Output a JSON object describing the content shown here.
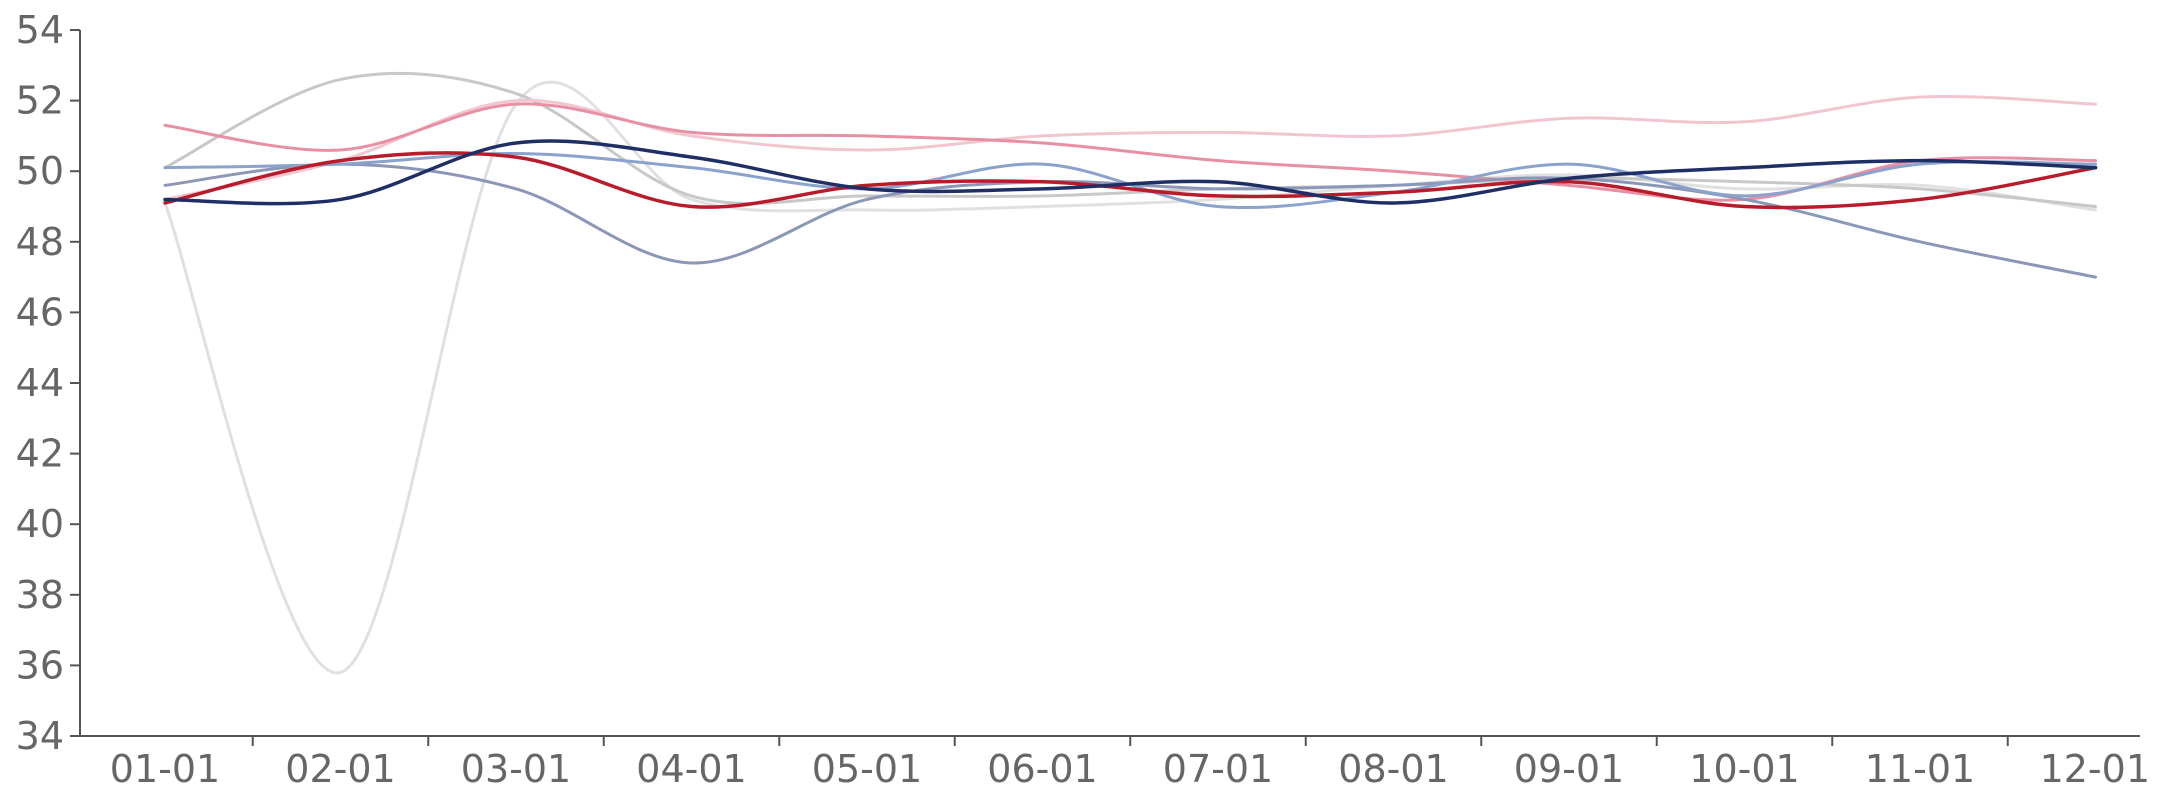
{
  "chart_data": {
    "type": "line",
    "title": "",
    "xlabel": "",
    "ylabel": "",
    "unit_label": "",
    "categories": [
      "01-01",
      "02-01",
      "03-01",
      "04-01",
      "05-01",
      "06-01",
      "07-01",
      "08-01",
      "09-01",
      "10-01",
      "11-01",
      "12-01"
    ],
    "y_ticks": [
      34,
      36,
      38,
      40,
      42,
      44,
      46,
      48,
      50,
      52,
      54
    ],
    "ylim": [
      34,
      54
    ],
    "grid": false,
    "legend": "none",
    "series": [
      {
        "color": "#e0e0e0",
        "width": 3,
        "values": [
          49.1,
          35.8,
          51.9,
          49.2,
          48.9,
          49.0,
          49.2,
          49.6,
          49.9,
          49.5,
          49.6,
          48.9
        ]
      },
      {
        "color": "#c8c8c8",
        "width": 3,
        "values": [
          50.1,
          52.6,
          52.2,
          49.3,
          49.3,
          49.3,
          49.5,
          49.6,
          49.8,
          49.7,
          49.5,
          49.0
        ]
      },
      {
        "color": "#f2c6cf",
        "width": 3,
        "values": [
          49.2,
          50.3,
          52.0,
          51.0,
          50.6,
          51.0,
          51.1,
          51.0,
          51.5,
          51.4,
          52.1,
          51.9
        ]
      },
      {
        "color": "#e88fa3",
        "width": 3,
        "values": [
          51.3,
          50.6,
          51.9,
          51.1,
          51.0,
          50.8,
          50.3,
          50.0,
          49.6,
          49.2,
          50.3,
          50.3
        ]
      },
      {
        "color": "#8c97b8",
        "width": 3,
        "values": [
          49.6,
          50.2,
          49.5,
          47.4,
          49.2,
          49.7,
          49.5,
          49.6,
          49.8,
          49.2,
          48.0,
          47.0
        ]
      },
      {
        "color": "#8aa2cc",
        "width": 3,
        "values": [
          50.1,
          50.2,
          50.5,
          50.1,
          49.5,
          50.2,
          49.0,
          49.4,
          50.2,
          49.3,
          50.2,
          50.2
        ]
      },
      {
        "color": "#b81c2b",
        "width": 3.5,
        "values": [
          49.1,
          50.3,
          50.4,
          49.0,
          49.6,
          49.7,
          49.3,
          49.4,
          49.7,
          49.0,
          49.2,
          50.1
        ]
      },
      {
        "color": "#1f2f66",
        "width": 3.5,
        "values": [
          49.2,
          49.2,
          50.8,
          50.4,
          49.5,
          49.5,
          49.7,
          49.1,
          49.8,
          50.1,
          50.3,
          50.1
        ]
      }
    ]
  }
}
